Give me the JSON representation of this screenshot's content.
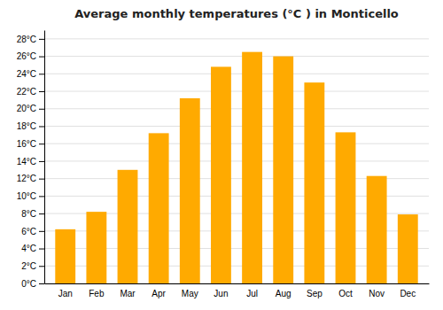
{
  "chart_data": {
    "type": "bar",
    "title": "Average monthly temperatures (°C ) in Monticello",
    "categories": [
      "Jan",
      "Feb",
      "Mar",
      "Apr",
      "May",
      "Jun",
      "Jul",
      "Aug",
      "Sep",
      "Oct",
      "Nov",
      "Dec"
    ],
    "values": [
      6.2,
      8.2,
      13.0,
      17.2,
      21.2,
      24.8,
      26.5,
      26.0,
      23.0,
      17.3,
      12.3,
      7.9
    ],
    "color": "#FFAA00",
    "ylim": [
      0,
      29
    ],
    "yticks": [
      {
        "value": 0,
        "label": "0°C"
      },
      {
        "value": 2,
        "label": "2°C"
      },
      {
        "value": 4,
        "label": "4°C"
      },
      {
        "value": 6,
        "label": "6°C"
      },
      {
        "value": 8,
        "label": "8°C"
      },
      {
        "value": 10,
        "label": "10°C"
      },
      {
        "value": 12,
        "label": "12°C"
      },
      {
        "value": 14,
        "label": "14°C"
      },
      {
        "value": 16,
        "label": "16°C"
      },
      {
        "value": 18,
        "label": "18°C"
      },
      {
        "value": 20,
        "label": "20°C"
      },
      {
        "value": 22,
        "label": "22°C"
      },
      {
        "value": 24,
        "label": "24°C"
      },
      {
        "value": 26,
        "label": "26°C"
      },
      {
        "value": 28,
        "label": "28°C"
      }
    ],
    "grid": true
  }
}
